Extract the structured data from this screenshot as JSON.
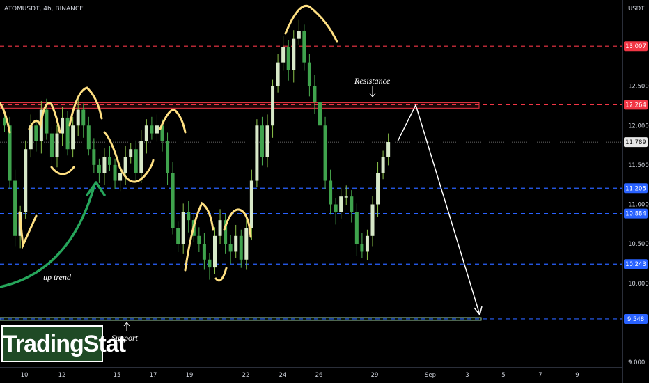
{
  "chart_data": {
    "type": "candlestick",
    "title": "ATOMUSDT, 4h, BINANCE",
    "currency": "USDT",
    "ylim": [
      8.9,
      13.55
    ],
    "price_ticks": [
      9.0,
      9.5,
      10.0,
      10.5,
      11.0,
      11.5,
      12.0,
      12.5,
      13.0
    ],
    "time_labels": [
      "10",
      "12",
      "15",
      "17",
      "19",
      "22",
      "24",
      "26",
      "29",
      "Sep",
      "3",
      "5",
      "7",
      "9"
    ],
    "levels": [
      {
        "label": "13.007",
        "value": 13.007,
        "color": "#f23645"
      },
      {
        "label": "12.264",
        "value": 12.264,
        "color": "#f23645"
      },
      {
        "label": "11.205",
        "value": 11.205,
        "color": "#2962ff"
      },
      {
        "label": "10.884",
        "value": 10.884,
        "color": "#2962ff"
      },
      {
        "label": "10.243",
        "value": 10.243,
        "color": "#2962ff"
      },
      {
        "label": "9.548",
        "value": 9.548,
        "color": "#2962ff"
      }
    ],
    "last_price": {
      "label": "11.789",
      "value": 11.789
    },
    "resistance_zone": [
      12.22,
      12.29
    ],
    "support_zone": [
      9.53,
      9.565
    ],
    "projection": [
      {
        "x": "now",
        "y": 11.8
      },
      {
        "x": "peak",
        "y": 12.26
      },
      {
        "x": "target",
        "y": 9.6
      }
    ],
    "annotations": [
      "Resistance",
      "Support",
      "up trend"
    ],
    "series_close": [
      12.0,
      11.3,
      10.6,
      10.9,
      11.7,
      12.0,
      11.8,
      12.2,
      11.9,
      11.6,
      11.9,
      12.1,
      11.7,
      12.0,
      12.2,
      12.0,
      11.7,
      11.5,
      11.4,
      11.6,
      11.5,
      11.3,
      11.4,
      11.6,
      11.7,
      11.4,
      11.8,
      12.0,
      11.9,
      12.0,
      11.8,
      11.4,
      10.7,
      10.5,
      10.9,
      10.8,
      10.6,
      10.5,
      10.3,
      10.2,
      10.6,
      10.8,
      10.5,
      10.4,
      10.6,
      10.3,
      10.7,
      11.3,
      12.0,
      11.6,
      12.0,
      12.5,
      12.8,
      13.0,
      12.7,
      13.1,
      13.2,
      12.8,
      12.5,
      12.3,
      12.0,
      11.3,
      11.0,
      10.9,
      11.1,
      11.1,
      10.9,
      10.5,
      10.4,
      10.6,
      11.0,
      11.4,
      11.6,
      11.79
    ]
  },
  "watermark": "TradingStat"
}
